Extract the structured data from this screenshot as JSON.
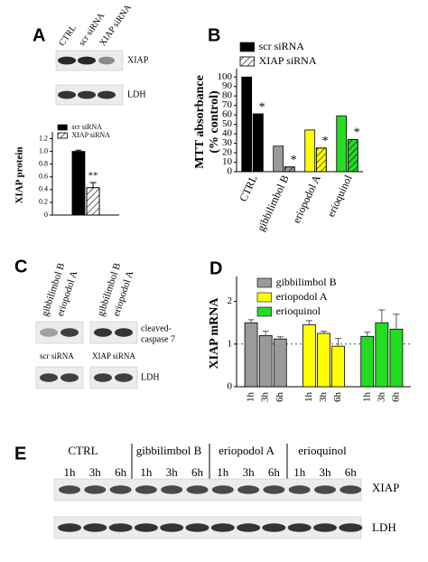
{
  "panel_labels": [
    "A",
    "B",
    "C",
    "D",
    "E"
  ],
  "blot_a": {
    "lanes": [
      "CTRL",
      "scr siRNA",
      "XIAP siRNA"
    ],
    "rows": [
      "XIAP",
      "LDH"
    ]
  },
  "blot_c": {
    "lanes": [
      "gibbilimbol B",
      "eriopodol A",
      "gibbilimbol B",
      "eriopodol A"
    ],
    "conditions": [
      "scr siRNA",
      "XIAP siRNA"
    ],
    "caspase_label": [
      "cleaved-",
      "caspase 7"
    ],
    "ldh_label": "LDH"
  },
  "blot_e": {
    "groups": [
      "CTRL",
      "gibbilimbol B",
      "eriopodol A",
      "erioquinol"
    ],
    "times": [
      "1h",
      "3h",
      "6h"
    ],
    "rows": [
      "XIAP",
      "LDH"
    ]
  },
  "chart_data": [
    {
      "type": "bar",
      "ylabel": "XIAP protein",
      "ylim": [
        0,
        1.25
      ],
      "yticks": [
        0,
        0.2,
        0.4,
        0.6,
        0.8,
        {
          "value": 1,
          "label": "1.0"
        },
        1.2
      ],
      "series": [
        {
          "name": "scr siRNA",
          "color": "#000000",
          "pattern": "solid",
          "values": [
            1.0
          ],
          "errors": [
            0.02
          ]
        },
        {
          "name": "XIAP siRNA",
          "color": "#ffffff",
          "pattern": "hatched",
          "values": [
            0.43
          ],
          "errors": [
            0.08
          ],
          "annotations": [
            "**"
          ]
        }
      ]
    },
    {
      "type": "bar",
      "ylabel": [
        "MTT absorbance",
        "(% control)"
      ],
      "ylim": [
        0,
        105
      ],
      "yticks": [
        0,
        10,
        20,
        30,
        40,
        50,
        60,
        70,
        80,
        90,
        100
      ],
      "categories": [
        "CTRL",
        "gibbilimbol B",
        "eriopodol A",
        "erioquinol"
      ],
      "category_colors": [
        "#000000",
        "#9a9a9a",
        "#ffff00",
        "#22dd22"
      ],
      "series": [
        {
          "name": "scr siRNA",
          "color": "#000000",
          "pattern": "solid",
          "values": [
            100,
            27,
            44,
            59
          ]
        },
        {
          "name": "XIAP siRNA",
          "color": "#ffffff",
          "pattern": "hatched",
          "values": [
            61,
            5,
            25,
            34
          ],
          "annotations": [
            "*",
            "*",
            "*",
            "*"
          ]
        }
      ]
    },
    {
      "type": "bar",
      "ylabel": "XIAP mRNA",
      "ylim": [
        0,
        2.5
      ],
      "yticks": [
        0,
        1,
        2
      ],
      "reference_line": 1,
      "categories": [
        "1h",
        "3h",
        "6h"
      ],
      "series": [
        {
          "name": "gibbilimbol B",
          "color": "#9a9a9a",
          "pattern": "solid",
          "values": [
            1.5,
            1.2,
            1.12
          ],
          "errors": [
            0.07,
            0.1,
            0.05
          ]
        },
        {
          "name": "eriopodol A",
          "color": "#ffff00",
          "pattern": "solid",
          "values": [
            1.45,
            1.25,
            0.95
          ],
          "errors": [
            0.1,
            0.05,
            0.18
          ]
        },
        {
          "name": "erioquinol",
          "color": "#22dd22",
          "pattern": "solid",
          "values": [
            1.18,
            1.5,
            1.35
          ],
          "errors": [
            0.1,
            0.3,
            0.35
          ]
        }
      ]
    }
  ]
}
